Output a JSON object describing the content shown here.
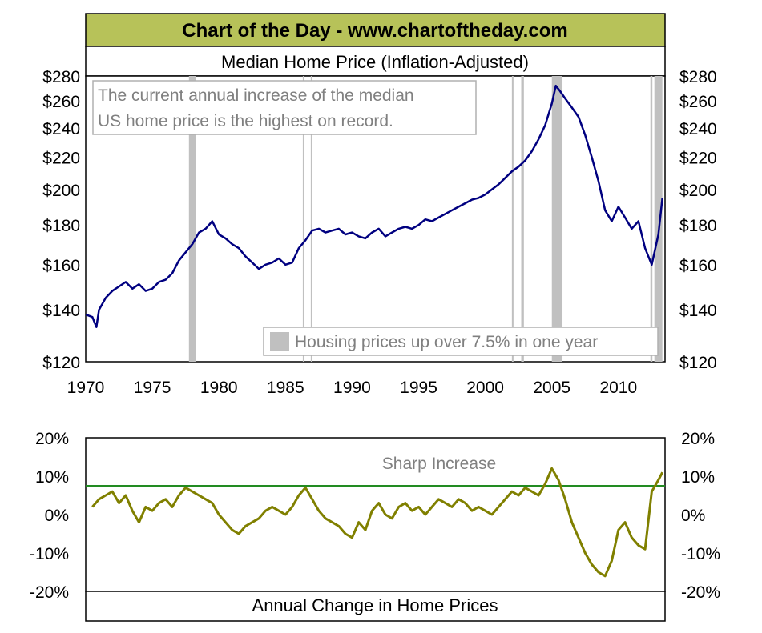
{
  "banner": {
    "title": "Chart of the Day - www.chartoftheday.com"
  },
  "colors": {
    "banner_bg": "#b7c259",
    "price_line": "#000080",
    "change_line": "#808000",
    "threshold_line": "#228b22",
    "shading": "#c0c0c0",
    "note_text": "#808080"
  },
  "chart_data": [
    {
      "type": "line",
      "title": "Median Home Price (Inflation-Adjusted)",
      "scale": "log",
      "ylim": [
        120,
        280
      ],
      "yticks": [
        120,
        140,
        160,
        180,
        200,
        220,
        240,
        260,
        280
      ],
      "ytick_labels": [
        "$120",
        "$140",
        "$160",
        "$180",
        "$200",
        "$220",
        "$240",
        "$260",
        "$280"
      ],
      "xlim": [
        1970,
        2013.5
      ],
      "xticks": [
        1970,
        1975,
        1980,
        1985,
        1990,
        1995,
        2000,
        2005,
        2010
      ],
      "xtick_labels": [
        "1970",
        "1975",
        "1980",
        "1985",
        "1990",
        "1995",
        "2000",
        "2005",
        "2010"
      ],
      "annotation": "The current annual increase of the median US home price is the highest on record.",
      "annotation_lines": [
        "The current annual increase of the median",
        "US home price is the highest on record."
      ],
      "legend": {
        "label": "Housing prices up over 7.5% in one year",
        "position": "bottom-right"
      },
      "shaded_periods": [
        [
          1977.75,
          1978.25
        ],
        [
          1986.3,
          1986.4
        ],
        [
          1986.9,
          1987.0
        ],
        [
          2002.0,
          2002.1
        ],
        [
          2002.7,
          2002.9
        ],
        [
          2005.0,
          2005.8
        ],
        [
          2012.4,
          2012.55
        ],
        [
          2012.7,
          2013.3
        ]
      ],
      "series": [
        {
          "x": [
            1970.0,
            1970.5,
            1970.8,
            1971.0,
            1971.5,
            1972.0,
            1972.5,
            1973.0,
            1973.5,
            1974.0,
            1974.5,
            1975.0,
            1975.5,
            1976.0,
            1976.5,
            1977.0,
            1977.5,
            1978.0,
            1978.5,
            1979.0,
            1979.5,
            1980.0,
            1980.5,
            1981.0,
            1981.5,
            1982.0,
            1982.5,
            1983.0,
            1983.5,
            1984.0,
            1984.5,
            1985.0,
            1985.5,
            1986.0,
            1986.5,
            1987.0,
            1987.5,
            1988.0,
            1988.5,
            1989.0,
            1989.5,
            1990.0,
            1990.5,
            1991.0,
            1991.5,
            1992.0,
            1992.5,
            1993.0,
            1993.5,
            1994.0,
            1994.5,
            1995.0,
            1995.5,
            1996.0,
            1996.5,
            1997.0,
            1997.5,
            1998.0,
            1998.5,
            1999.0,
            1999.5,
            2000.0,
            2000.5,
            2001.0,
            2001.5,
            2002.0,
            2002.5,
            2003.0,
            2003.5,
            2004.0,
            2004.5,
            2005.0,
            2005.3,
            2005.6,
            2006.0,
            2006.5,
            2007.0,
            2007.5,
            2008.0,
            2008.5,
            2009.0,
            2009.5,
            2010.0,
            2010.5,
            2011.0,
            2011.5,
            2012.0,
            2012.5,
            2013.0,
            2013.3
          ],
          "values": [
            138,
            137,
            133,
            140,
            145,
            148,
            150,
            152,
            149,
            151,
            148,
            149,
            152,
            153,
            156,
            162,
            166,
            170,
            176,
            178,
            182,
            175,
            173,
            170,
            168,
            164,
            161,
            158,
            160,
            161,
            163,
            160,
            161,
            168,
            172,
            177,
            178,
            176,
            177,
            178,
            175,
            176,
            174,
            173,
            176,
            178,
            174,
            176,
            178,
            179,
            178,
            180,
            183,
            182,
            184,
            186,
            188,
            190,
            192,
            194,
            195,
            197,
            200,
            203,
            207,
            211,
            214,
            218,
            224,
            232,
            242,
            258,
            272,
            268,
            262,
            255,
            248,
            235,
            220,
            205,
            188,
            182,
            190,
            184,
            178,
            182,
            168,
            160,
            175,
            195
          ]
        }
      ]
    },
    {
      "type": "line",
      "title": "Annual Change in Home Prices",
      "ylim": [
        -20,
        20
      ],
      "yticks": [
        -20,
        -10,
        0,
        10,
        20
      ],
      "ytick_labels": [
        "-20%",
        "-10%",
        "0%",
        "10%",
        "20%"
      ],
      "xlim": [
        1970,
        2013.5
      ],
      "threshold": 7.5,
      "annotation": "Sharp Increase",
      "series": [
        {
          "x": [
            1970.5,
            1971.0,
            1971.5,
            1972.0,
            1972.5,
            1973.0,
            1973.5,
            1974.0,
            1974.5,
            1975.0,
            1975.5,
            1976.0,
            1976.5,
            1977.0,
            1977.5,
            1978.0,
            1978.5,
            1979.0,
            1979.5,
            1980.0,
            1980.5,
            1981.0,
            1981.5,
            1982.0,
            1982.5,
            1983.0,
            1983.5,
            1984.0,
            1984.5,
            1985.0,
            1985.5,
            1986.0,
            1986.5,
            1987.0,
            1987.5,
            1988.0,
            1988.5,
            1989.0,
            1989.5,
            1990.0,
            1990.5,
            1991.0,
            1991.5,
            1992.0,
            1992.5,
            1993.0,
            1993.5,
            1994.0,
            1994.5,
            1995.0,
            1995.5,
            1996.0,
            1996.5,
            1997.0,
            1997.5,
            1998.0,
            1998.5,
            1999.0,
            1999.5,
            2000.0,
            2000.5,
            2001.0,
            2001.5,
            2002.0,
            2002.5,
            2003.0,
            2003.5,
            2004.0,
            2004.5,
            2005.0,
            2005.5,
            2006.0,
            2006.5,
            2007.0,
            2007.5,
            2008.0,
            2008.5,
            2009.0,
            2009.5,
            2010.0,
            2010.5,
            2011.0,
            2011.5,
            2012.0,
            2012.5,
            2013.0,
            2013.3
          ],
          "values": [
            2,
            4,
            5,
            6,
            3,
            5,
            1,
            -2,
            2,
            1,
            3,
            4,
            2,
            5,
            7,
            6,
            5,
            4,
            3,
            0,
            -2,
            -4,
            -5,
            -3,
            -2,
            -1,
            1,
            2,
            1,
            0,
            2,
            5,
            7,
            4,
            1,
            -1,
            -2,
            -3,
            -5,
            -6,
            -2,
            -4,
            1,
            3,
            0,
            -1,
            2,
            3,
            1,
            2,
            0,
            2,
            4,
            3,
            2,
            4,
            3,
            1,
            2,
            1,
            0,
            2,
            4,
            6,
            5,
            7,
            6,
            5,
            8,
            12,
            9,
            4,
            -2,
            -6,
            -10,
            -13,
            -15,
            -16,
            -12,
            -4,
            -2,
            -6,
            -8,
            -9,
            6,
            9,
            11
          ]
        }
      ]
    }
  ]
}
